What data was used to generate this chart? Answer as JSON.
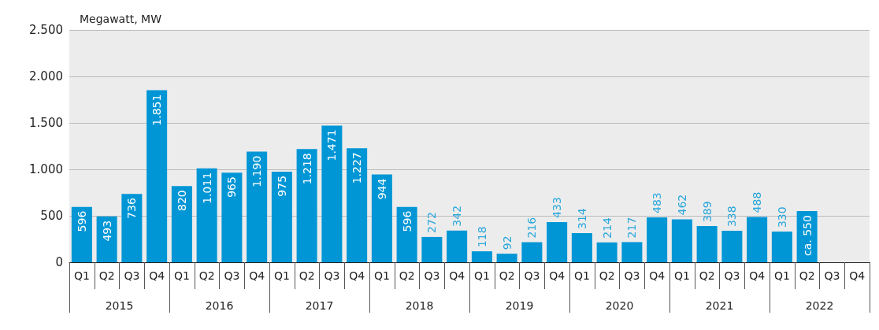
{
  "chart_data": {
    "type": "bar",
    "ylabel": "Megawatt, MW",
    "categories": [
      "Q1",
      "Q2",
      "Q3",
      "Q4",
      "Q1",
      "Q2",
      "Q3",
      "Q4",
      "Q1",
      "Q2",
      "Q3",
      "Q4",
      "Q1",
      "Q2",
      "Q3",
      "Q4",
      "Q1",
      "Q2",
      "Q3",
      "Q4",
      "Q1",
      "Q2",
      "Q3",
      "Q4",
      "Q1",
      "Q2",
      "Q3",
      "Q4",
      "Q1",
      "Q2",
      "Q3",
      "Q4"
    ],
    "values": [
      596,
      493,
      736,
      1851,
      820,
      1011,
      965,
      1190,
      975,
      1218,
      1471,
      1227,
      944,
      596,
      272,
      342,
      118,
      92,
      216,
      433,
      314,
      214,
      217,
      483,
      462,
      389,
      338,
      488,
      330,
      550,
      null,
      null
    ],
    "value_labels": [
      "596",
      "493",
      "736",
      "1.851",
      "820",
      "1.011",
      "965",
      "1.190",
      "975",
      "1.218",
      "1.471",
      "1.227",
      "944",
      "596",
      "272",
      "342",
      "118",
      "92",
      "216",
      "433",
      "314",
      "214",
      "217",
      "483",
      "462",
      "389",
      "338",
      "488",
      "330",
      "ca. 550",
      null,
      null
    ],
    "color": "#0096d6",
    "annotations": [
      "2015",
      "2016",
      "2017",
      "2018",
      "2019",
      "2020",
      "2021",
      "2022"
    ],
    "ylim": [
      0,
      2500
    ],
    "yticks": [
      0,
      {
        "value": 500,
        "label": "500"
      },
      {
        "value": 1000,
        "label": "1.000"
      },
      {
        "value": 1500,
        "label": "1.500"
      },
      {
        "value": 2000,
        "label": "2.000"
      },
      {
        "value": 2500,
        "label": "2.500"
      }
    ],
    "grid": "y"
  }
}
